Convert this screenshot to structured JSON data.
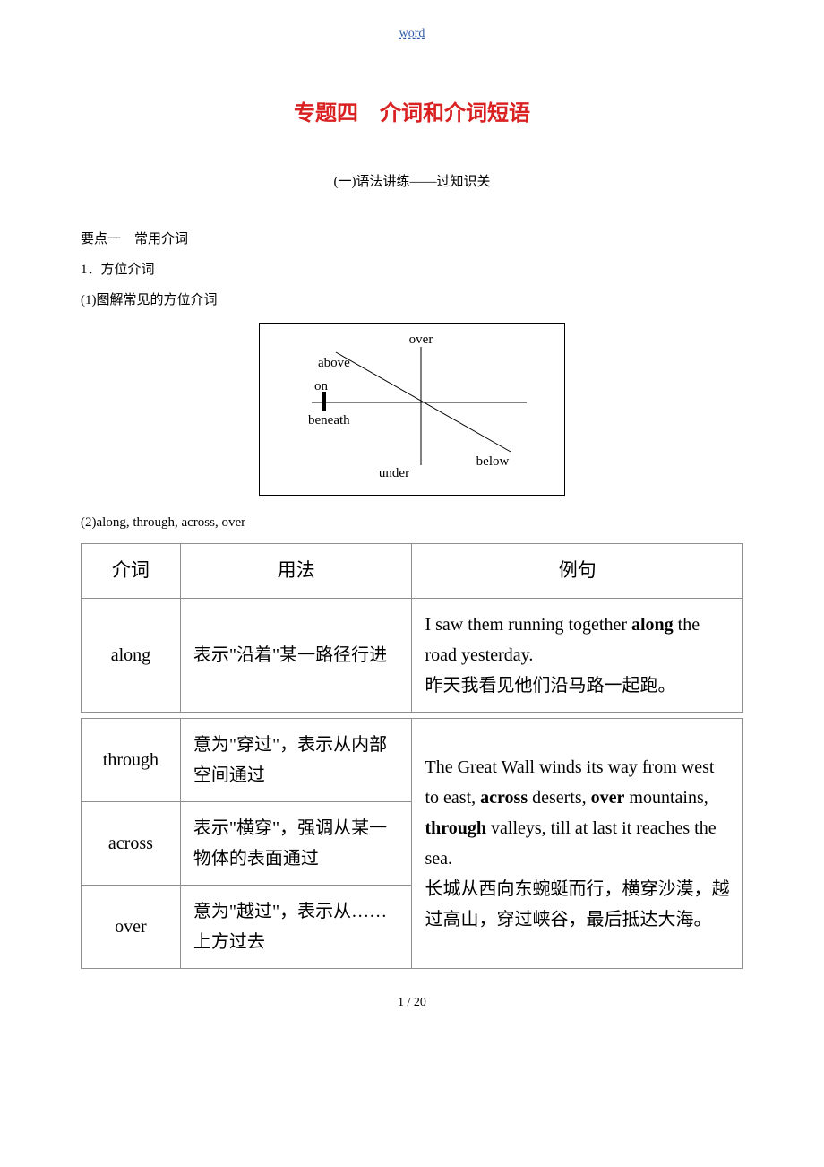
{
  "header_link": "word",
  "main_title": "专题四　介词和介词短语",
  "subsection_title": "(一)语法讲练——过知识关",
  "section1": "要点一　常用介词",
  "section1_1": "1．方位介词",
  "section1_1a": "(1)图解常见的方位介词",
  "section1_2": "(2)along, through, across, over",
  "diagram": {
    "over": "over",
    "above": "above",
    "on": "on",
    "beneath": "beneath",
    "under": "under",
    "below": "below",
    "line_color": "#000000",
    "font_family": "Times New Roman",
    "font_size": 15
  },
  "table": {
    "col_widths_pct": [
      15,
      35,
      50
    ],
    "border_color": "#8f8f8f",
    "cell_font_size": 20,
    "header_font_size": 21,
    "font_family": "Kaiti",
    "en_font_family": "Times New Roman",
    "headers": [
      "介词",
      "用法",
      "例句"
    ],
    "row1": {
      "prep": "along",
      "usage": "表示\"沿着\"某一路径行进",
      "example_en": "I saw them running together <b>along</b> the road yesterday.",
      "example_zh": "昨天我看见他们沿马路一起跑。"
    },
    "row2": {
      "prep": "through",
      "usage": "意为\"穿过\"，表示从内部空间通过"
    },
    "row3": {
      "prep": "across",
      "usage": "表示\"横穿\"，强调从某一物体的表面通过"
    },
    "row4": {
      "prep": "over",
      "usage": "意为\"越过\"，表示从……上方过去"
    },
    "merged_example_en": "The Great Wall winds its way from west to east, <b>across</b> deserts, <b>over</b> mountains, <b>through</b> valleys, till at last it reaches the sea.",
    "merged_example_zh": "长城从西向东蜿蜒而行，横穿沙漠，越过高山，穿过峡谷，最后抵达大海。"
  },
  "footer": "1 / 20"
}
